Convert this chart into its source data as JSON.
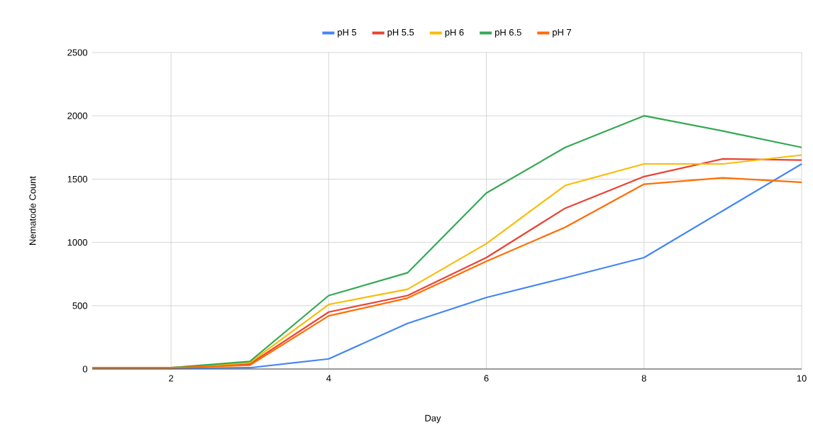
{
  "chart_data": {
    "type": "line",
    "xlabel": "Day",
    "ylabel": "Nematode Count",
    "x": [
      1,
      2,
      3,
      4,
      5,
      6,
      7,
      8,
      9,
      10
    ],
    "series": [
      {
        "name": "pH 5",
        "color": "#4285f4",
        "values": [
          5,
          5,
          10,
          80,
          360,
          565,
          720,
          880,
          1250,
          1620
        ]
      },
      {
        "name": "pH 5.5",
        "color": "#ea4335",
        "values": [
          10,
          10,
          40,
          450,
          580,
          880,
          1270,
          1520,
          1660,
          1650
        ]
      },
      {
        "name": "pH 6",
        "color": "#fbbc04",
        "values": [
          10,
          10,
          50,
          510,
          630,
          990,
          1450,
          1620,
          1620,
          1690
        ]
      },
      {
        "name": "pH 6.5",
        "color": "#34a853",
        "values": [
          10,
          10,
          60,
          580,
          760,
          1390,
          1750,
          2000,
          1880,
          1750
        ]
      },
      {
        "name": "pH 7",
        "color": "#ff6d01",
        "values": [
          10,
          10,
          30,
          420,
          560,
          850,
          1120,
          1460,
          1510,
          1475
        ]
      }
    ],
    "xlim": [
      1,
      10
    ],
    "xticks": [
      2,
      4,
      6,
      8,
      10
    ],
    "ylim": [
      0,
      2500
    ],
    "yticks": [
      0,
      500,
      1000,
      1500,
      2000,
      2500
    ],
    "grid": true,
    "legend": "top",
    "marker": "none",
    "line_style": "solid"
  }
}
